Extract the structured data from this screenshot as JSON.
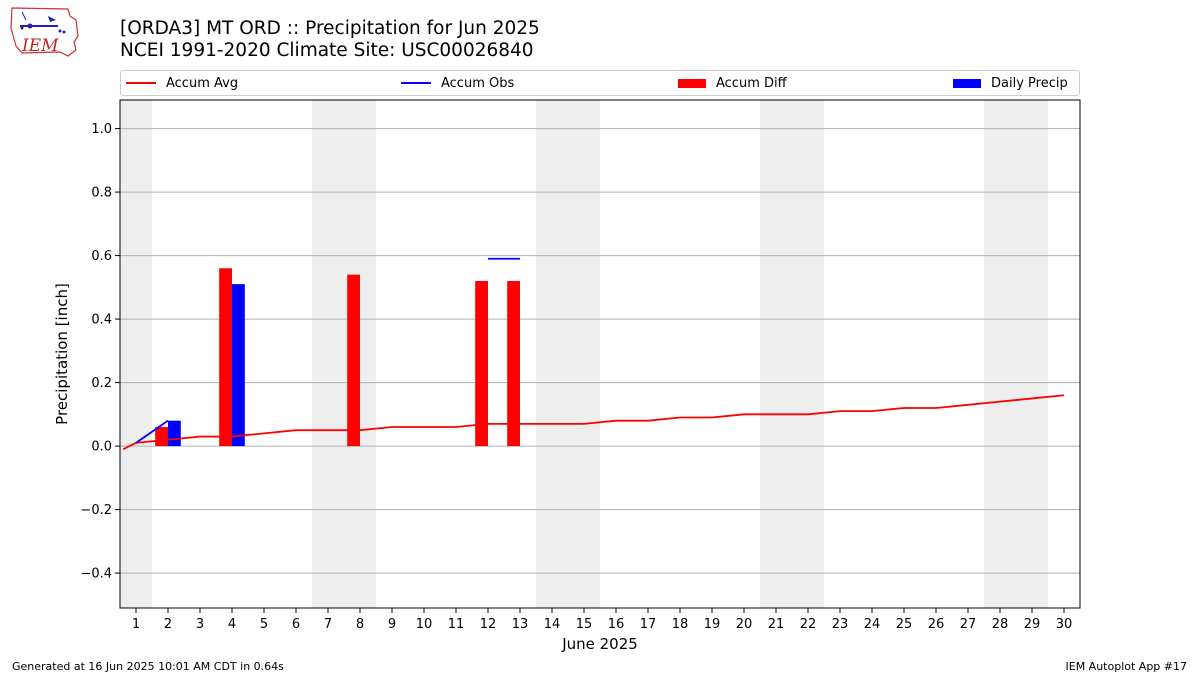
{
  "header": {
    "title_line1": "[ORDA3] MT ORD :: Precipitation for Jun 2025",
    "title_line2": "NCEI 1991-2020 Climate Site: USC00026840",
    "logo_text": "IEM"
  },
  "footer": {
    "generated": "Generated at 16 Jun 2025 10:01 AM CDT in 0.64s",
    "app": "IEM Autoplot App #17"
  },
  "colors": {
    "avg": "#ff0000",
    "obs": "#0000ff",
    "diff": "#ff0000",
    "daily": "#0000ff",
    "weekend": "#eeeeee",
    "grid": "#b0b0b0"
  },
  "chart_data": {
    "type": "bar",
    "xlabel": "June 2025",
    "ylabel": "Precipitation [inch]",
    "xlim": [
      0.5,
      30.5
    ],
    "ylim": [
      -0.51,
      1.09
    ],
    "yticks": [
      -0.4,
      -0.2,
      0.0,
      0.2,
      0.4,
      0.6,
      0.8,
      1.0
    ],
    "ytick_labels": [
      "−0.4",
      "−0.2",
      "0.0",
      "0.2",
      "0.4",
      "0.6",
      "0.8",
      "1.0"
    ],
    "x": [
      1,
      2,
      3,
      4,
      5,
      6,
      7,
      8,
      9,
      10,
      11,
      12,
      13,
      14,
      15,
      16,
      17,
      18,
      19,
      20,
      21,
      22,
      23,
      24,
      25,
      26,
      27,
      28,
      29,
      30
    ],
    "grid": true,
    "legend_position": "top",
    "shaded_days": [
      1,
      7,
      8,
      14,
      15,
      21,
      22,
      28,
      29
    ],
    "series": [
      {
        "name": "Accum Avg",
        "kind": "line",
        "color": "#ff0000",
        "x": [
          0.6,
          1,
          2,
          3,
          4,
          5,
          6,
          7,
          8,
          9,
          10,
          11,
          12,
          13,
          14,
          15,
          16,
          17,
          18,
          19,
          20,
          21,
          22,
          23,
          24,
          25,
          26,
          27,
          28,
          29,
          30
        ],
        "values": [
          -0.01,
          0.01,
          0.02,
          0.03,
          0.03,
          0.04,
          0.05,
          0.05,
          0.05,
          0.06,
          0.06,
          0.06,
          0.07,
          0.07,
          0.07,
          0.07,
          0.08,
          0.08,
          0.09,
          0.09,
          0.1,
          0.1,
          0.1,
          0.11,
          0.11,
          0.12,
          0.12,
          0.13,
          0.14,
          0.15,
          0.16
        ]
      },
      {
        "name": "Accum Obs",
        "kind": "line",
        "color": "#0000ff",
        "segments": [
          {
            "x": [
              1,
              2
            ],
            "values": [
              0.01,
              0.08
            ]
          },
          {
            "x": [
              12,
              13
            ],
            "values": [
              0.59,
              0.59
            ]
          }
        ]
      },
      {
        "name": "Accum Diff",
        "kind": "bar",
        "color": "#ff0000",
        "offset": -0.2,
        "x": [
          2,
          4,
          8,
          12,
          13
        ],
        "values": [
          0.06,
          0.56,
          0.54,
          0.52,
          0.52
        ]
      },
      {
        "name": "Daily Precip",
        "kind": "bar",
        "color": "#0000ff",
        "offset": 0.2,
        "x": [
          2,
          4
        ],
        "values": [
          0.08,
          0.51
        ]
      }
    ]
  }
}
